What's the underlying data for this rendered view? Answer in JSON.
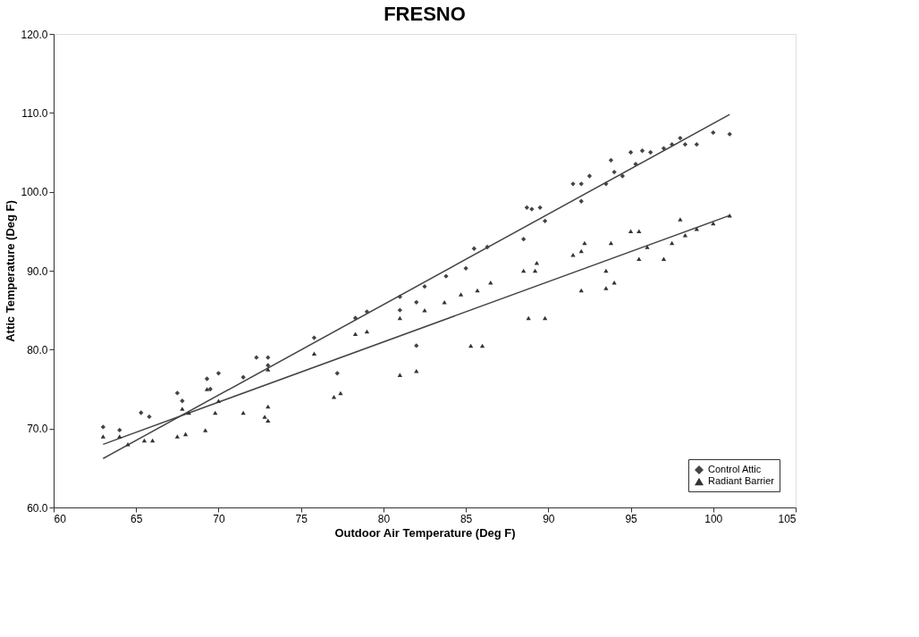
{
  "chart_data": {
    "type": "scatter",
    "title": "FRESNO",
    "xlabel": "Outdoor Air Temperature (Deg F)",
    "ylabel": "Attic Temperature (Deg F)",
    "xlim": [
      60,
      105
    ],
    "xticks": [
      60,
      65,
      70,
      75,
      80,
      85,
      90,
      95,
      100,
      105
    ],
    "ylim": [
      60,
      120
    ],
    "yticks": [
      {
        "value": 60,
        "label": "60.0"
      },
      {
        "value": 70,
        "label": "70.0"
      },
      {
        "value": 80,
        "label": "80.0"
      },
      {
        "value": 90,
        "label": "90.0"
      },
      {
        "value": 100,
        "label": "100.0"
      },
      {
        "value": 110,
        "label": "110.0"
      },
      {
        "value": 120,
        "label": "120.0"
      }
    ],
    "grid": false,
    "legend": "bottom right",
    "series": [
      {
        "name": "Control Attic",
        "color": "#444444",
        "marker": "diamond",
        "x": [
          63,
          64,
          65.3,
          65.8,
          67.5,
          67.8,
          69.3,
          69.5,
          70,
          71.5,
          72.3,
          73,
          73,
          75.8,
          77.2,
          78.3,
          79,
          81,
          81,
          82,
          82,
          82.5,
          83.8,
          85,
          85.5,
          86.3,
          88.5,
          88.7,
          89,
          89.5,
          89.8,
          91.5,
          92,
          92,
          92.5,
          93.5,
          93.8,
          94,
          94.5,
          95,
          95.3,
          95.7,
          96.2,
          97,
          97.5,
          98,
          98.3,
          99,
          100,
          101
        ],
        "values": [
          70.2,
          69.8,
          72,
          71.5,
          74.5,
          73.5,
          76.3,
          75,
          77,
          76.5,
          79,
          79,
          78,
          81.5,
          77,
          84,
          84.8,
          86.7,
          85,
          80.5,
          86,
          88,
          89.3,
          90.3,
          92.8,
          93,
          94,
          98,
          97.8,
          98,
          96.3,
          101,
          98.8,
          101,
          102,
          101,
          104,
          102.5,
          102,
          105,
          103.5,
          105.2,
          105,
          105.5,
          106,
          106.8,
          106,
          106,
          107.5,
          107.3
        ]
      },
      {
        "name": "Radiant Barrier",
        "color": "#333333",
        "marker": "triangle",
        "x": [
          63,
          64,
          64.5,
          65.5,
          66,
          67.5,
          68,
          67.8,
          68.2,
          69.2,
          69.3,
          69.8,
          70,
          71.5,
          73,
          72.8,
          73,
          73,
          75.8,
          77,
          77.4,
          78.3,
          79,
          81,
          81,
          82,
          82.5,
          83.7,
          84.7,
          85.3,
          86,
          85.7,
          86.5,
          88.5,
          88.8,
          89.3,
          89.2,
          89.8,
          91.5,
          92,
          92.2,
          92,
          93.5,
          93.8,
          93.5,
          94,
          95,
          95.5,
          95.5,
          96,
          97,
          97.5,
          98,
          98.3,
          99,
          100,
          101
        ],
        "values": [
          69,
          69,
          68,
          68.5,
          68.5,
          69,
          69.3,
          72.5,
          72,
          69.8,
          75,
          72,
          73.5,
          72,
          71,
          71.5,
          72.8,
          77.5,
          79.5,
          74,
          74.5,
          82,
          82.3,
          84,
          76.8,
          77.3,
          85,
          86,
          87,
          80.5,
          80.5,
          87.5,
          88.5,
          90,
          84,
          91,
          90,
          84,
          92,
          92.5,
          93.5,
          87.5,
          90,
          93.5,
          87.8,
          88.5,
          95,
          95,
          91.5,
          93,
          91.5,
          93.5,
          96.5,
          94.5,
          95.3,
          96,
          97
        ]
      },
      {
        "type": "line",
        "color": "#444444",
        "x": [
          63,
          101
        ],
        "values": [
          66.2,
          109.8
        ]
      },
      {
        "type": "line",
        "color": "#444444",
        "x": [
          63,
          101
        ],
        "values": [
          68.0,
          97.0
        ]
      }
    ]
  }
}
